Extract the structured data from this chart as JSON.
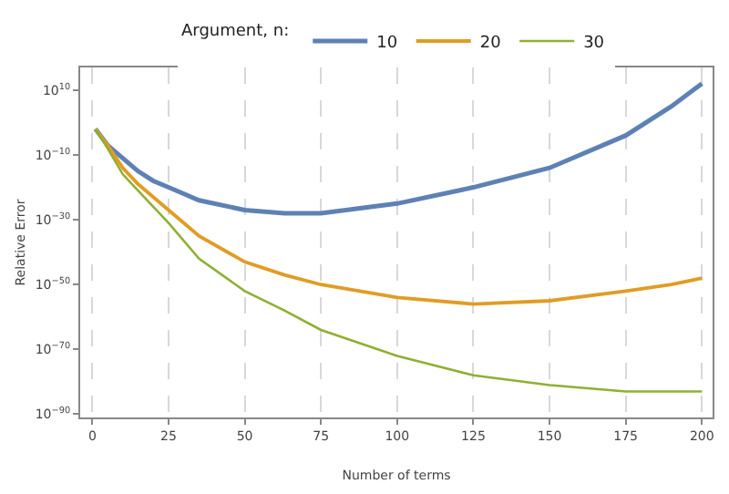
{
  "chart_data": {
    "type": "line",
    "legend_title": "Argument, n:",
    "xlabel": "Number of terms",
    "ylabel": "Relative Error",
    "log": "y",
    "grid": "x",
    "legend": "top",
    "line_style": "solid",
    "xlim": [
      -4,
      203.5
    ],
    "xticks": [
      0,
      25,
      50,
      75,
      100,
      125,
      150,
      175,
      200
    ],
    "ylim": [
      1e-91,
      1e+17
    ],
    "yticks": [
      {
        "value": 10000000000.0,
        "label": "10$^{10}$"
      },
      {
        "value": 1e-10,
        "label": "10$^{−10}$"
      },
      {
        "value": 1e-30,
        "label": "10$^{−30}$"
      },
      {
        "value": 1e-50,
        "label": "10$^{−50}$"
      },
      {
        "value": 1e-70,
        "label": "10$^{−70}$"
      },
      {
        "value": 1e-90,
        "label": "10$^{−90}$"
      }
    ],
    "x": [
      1,
      5,
      10,
      15,
      20,
      25,
      35,
      50,
      63,
      75,
      100,
      125,
      150,
      175,
      190,
      200
    ],
    "series": [
      {
        "name": "10",
        "color": "#5e81b5",
        "values": [
          0.01,
          1e-07,
          1e-11,
          1e-15,
          1e-18,
          1e-20,
          1e-24,
          1e-27,
          1e-28,
          1e-28,
          1e-25,
          1e-20,
          1e-14,
          0.0001,
          100000.0,
          1000000000000.0
        ]
      },
      {
        "name": "20",
        "color": "#e19c24",
        "values": [
          0.01,
          1e-07,
          1e-14,
          1e-19,
          1e-23,
          1e-27,
          1e-35,
          1e-43,
          1e-47,
          1e-50,
          1e-54,
          1e-56,
          1e-55,
          1e-52,
          1e-50,
          1e-48
        ]
      },
      {
        "name": "30",
        "color": "#8fb032",
        "values": [
          0.01,
          1e-08,
          1e-16,
          1e-21,
          1e-26,
          1e-31,
          1e-42,
          1e-52,
          1e-58,
          1e-64,
          1e-72,
          1e-78,
          1e-81,
          1e-83,
          1e-83,
          1e-83
        ]
      }
    ]
  }
}
